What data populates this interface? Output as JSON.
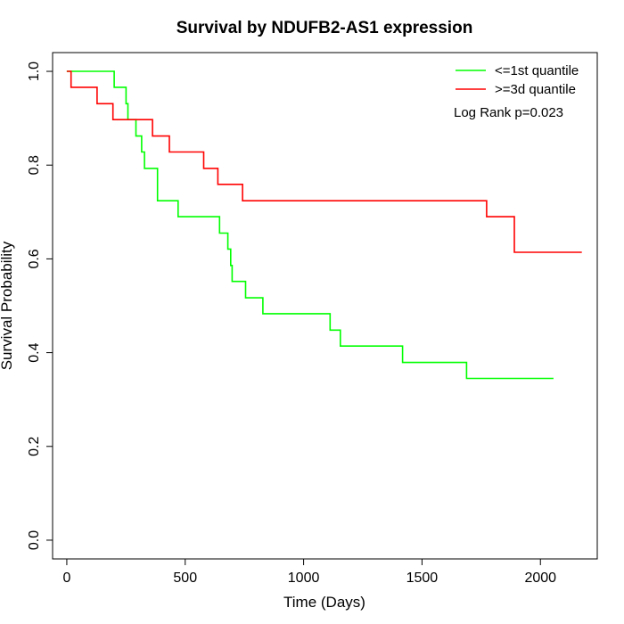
{
  "chart_data": {
    "type": "line",
    "title": "Survival by NDUFB2-AS1 expression",
    "xlabel": "Time (Days)",
    "ylabel": "Survival Probability",
    "xlim": [
      -60,
      2240
    ],
    "ylim": [
      -0.04,
      1.04
    ],
    "xticks": [
      0,
      500,
      1000,
      1500,
      2000
    ],
    "xtick_labels": [
      "0",
      "500",
      "1000",
      "1500",
      "2000"
    ],
    "yticks": [
      0.0,
      0.2,
      0.4,
      0.6,
      0.8,
      1.0
    ],
    "ytick_labels": [
      "0.0",
      "0.2",
      "0.4",
      "0.6",
      "0.8",
      "1.0"
    ],
    "grid": false,
    "legend_position": "top-right",
    "annotation": "Log Rank p=0.023",
    "series": [
      {
        "name": "<=1st quantile",
        "color": "#00ff00",
        "step": true,
        "points": [
          [
            0,
            1.0
          ],
          [
            200,
            1.0
          ],
          [
            200,
            0.966
          ],
          [
            250,
            0.966
          ],
          [
            250,
            0.931
          ],
          [
            258,
            0.931
          ],
          [
            258,
            0.897
          ],
          [
            292,
            0.897
          ],
          [
            292,
            0.862
          ],
          [
            316,
            0.862
          ],
          [
            316,
            0.828
          ],
          [
            328,
            0.828
          ],
          [
            328,
            0.793
          ],
          [
            383,
            0.793
          ],
          [
            383,
            0.724
          ],
          [
            470,
            0.724
          ],
          [
            470,
            0.69
          ],
          [
            645,
            0.69
          ],
          [
            645,
            0.655
          ],
          [
            680,
            0.655
          ],
          [
            680,
            0.621
          ],
          [
            692,
            0.621
          ],
          [
            692,
            0.586
          ],
          [
            698,
            0.586
          ],
          [
            698,
            0.552
          ],
          [
            755,
            0.552
          ],
          [
            755,
            0.517
          ],
          [
            828,
            0.517
          ],
          [
            828,
            0.483
          ],
          [
            1112,
            0.483
          ],
          [
            1112,
            0.448
          ],
          [
            1155,
            0.448
          ],
          [
            1155,
            0.414
          ],
          [
            1418,
            0.414
          ],
          [
            1418,
            0.379
          ],
          [
            1688,
            0.379
          ],
          [
            1688,
            0.345
          ],
          [
            2055,
            0.345
          ]
        ]
      },
      {
        "name": ">=3d quantile",
        "color": "#ff0000",
        "step": true,
        "points": [
          [
            0,
            1.0
          ],
          [
            18,
            1.0
          ],
          [
            18,
            0.966
          ],
          [
            128,
            0.966
          ],
          [
            128,
            0.931
          ],
          [
            195,
            0.931
          ],
          [
            195,
            0.897
          ],
          [
            362,
            0.897
          ],
          [
            362,
            0.862
          ],
          [
            433,
            0.862
          ],
          [
            433,
            0.828
          ],
          [
            578,
            0.828
          ],
          [
            578,
            0.793
          ],
          [
            638,
            0.793
          ],
          [
            638,
            0.759
          ],
          [
            742,
            0.759
          ],
          [
            742,
            0.724
          ],
          [
            1773,
            0.724
          ],
          [
            1773,
            0.69
          ],
          [
            1890,
            0.69
          ],
          [
            1890,
            0.614
          ],
          [
            2175,
            0.614
          ]
        ]
      }
    ]
  }
}
